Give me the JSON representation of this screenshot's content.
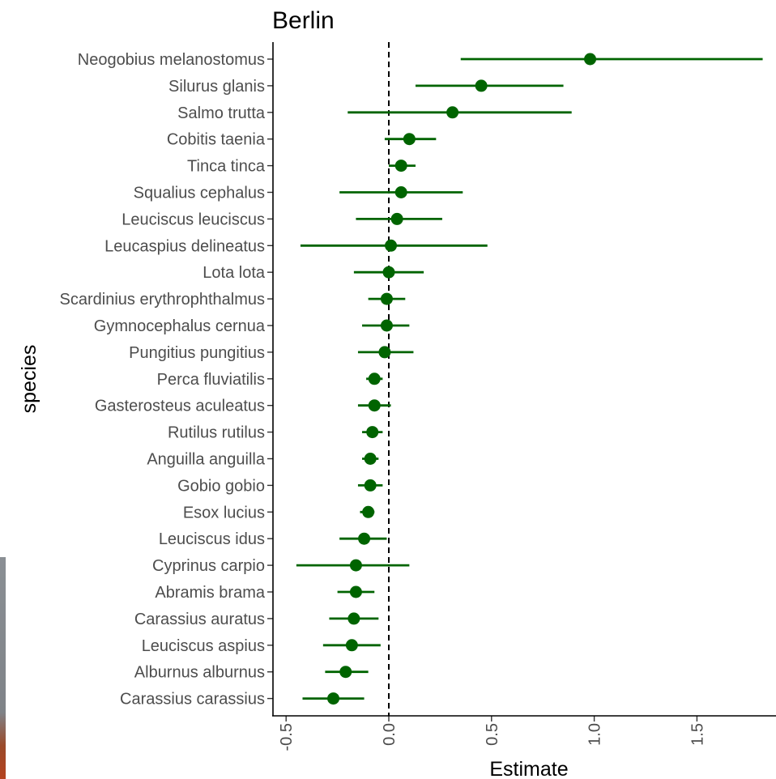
{
  "chart_data": {
    "type": "scatter",
    "title": "Berlin",
    "xlabel": "Estimate",
    "ylabel": "species",
    "xlim": [
      -0.57,
      1.88
    ],
    "x_ticks": [
      -0.5,
      0.0,
      0.5,
      1.0,
      1.5
    ],
    "x_tick_labels": [
      "-0.5",
      "0.0",
      "0.5",
      "1.0",
      "1.5"
    ],
    "reference_line": 0,
    "grid": false,
    "legend": "none",
    "color": "#006400",
    "points": [
      {
        "species": "Neogobius melanostomus",
        "estimate": 0.98,
        "lower": 0.35,
        "upper": 1.82
      },
      {
        "species": "Silurus glanis",
        "estimate": 0.45,
        "lower": 0.13,
        "upper": 0.85
      },
      {
        "species": "Salmo trutta",
        "estimate": 0.31,
        "lower": -0.2,
        "upper": 0.89
      },
      {
        "species": "Cobitis taenia",
        "estimate": 0.1,
        "lower": -0.02,
        "upper": 0.23
      },
      {
        "species": "Tinca tinca",
        "estimate": 0.06,
        "lower": 0.0,
        "upper": 0.13
      },
      {
        "species": "Squalius cephalus",
        "estimate": 0.06,
        "lower": -0.24,
        "upper": 0.36
      },
      {
        "species": "Leuciscus leuciscus",
        "estimate": 0.04,
        "lower": -0.16,
        "upper": 0.26
      },
      {
        "species": "Leucaspius delineatus",
        "estimate": 0.01,
        "lower": -0.43,
        "upper": 0.48
      },
      {
        "species": "Lota lota",
        "estimate": 0.0,
        "lower": -0.17,
        "upper": 0.17
      },
      {
        "species": "Scardinius erythrophthalmus",
        "estimate": -0.01,
        "lower": -0.1,
        "upper": 0.08
      },
      {
        "species": "Gymnocephalus cernua",
        "estimate": -0.01,
        "lower": -0.13,
        "upper": 0.1
      },
      {
        "species": "Pungitius pungitius",
        "estimate": -0.02,
        "lower": -0.15,
        "upper": 0.12
      },
      {
        "species": "Perca fluviatilis",
        "estimate": -0.07,
        "lower": -0.11,
        "upper": -0.03
      },
      {
        "species": "Gasterosteus aculeatus",
        "estimate": -0.07,
        "lower": -0.15,
        "upper": 0.01
      },
      {
        "species": "Rutilus rutilus",
        "estimate": -0.08,
        "lower": -0.13,
        "upper": -0.03
      },
      {
        "species": "Anguilla anguilla",
        "estimate": -0.09,
        "lower": -0.13,
        "upper": -0.05
      },
      {
        "species": "Gobio gobio",
        "estimate": -0.09,
        "lower": -0.15,
        "upper": -0.03
      },
      {
        "species": "Esox lucius",
        "estimate": -0.1,
        "lower": -0.14,
        "upper": -0.07
      },
      {
        "species": "Leuciscus idus",
        "estimate": -0.12,
        "lower": -0.24,
        "upper": -0.01
      },
      {
        "species": "Cyprinus carpio",
        "estimate": -0.16,
        "lower": -0.45,
        "upper": 0.1
      },
      {
        "species": "Abramis brama",
        "estimate": -0.16,
        "lower": -0.25,
        "upper": -0.07
      },
      {
        "species": "Carassius auratus",
        "estimate": -0.17,
        "lower": -0.29,
        "upper": -0.05
      },
      {
        "species": "Leuciscus aspius",
        "estimate": -0.18,
        "lower": -0.32,
        "upper": -0.04
      },
      {
        "species": "Alburnus alburnus",
        "estimate": -0.21,
        "lower": -0.31,
        "upper": -0.1
      },
      {
        "species": "Carassius carassius",
        "estimate": -0.27,
        "lower": -0.42,
        "upper": -0.12
      }
    ]
  }
}
